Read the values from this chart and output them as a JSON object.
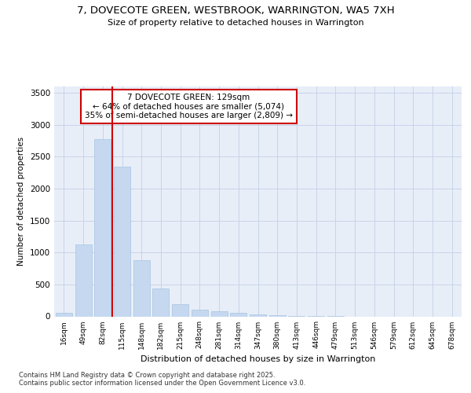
{
  "title1": "7, DOVECOTE GREEN, WESTBROOK, WARRINGTON, WA5 7XH",
  "title2": "Size of property relative to detached houses in Warrington",
  "xlabel": "Distribution of detached houses by size in Warrington",
  "ylabel": "Number of detached properties",
  "categories": [
    "16sqm",
    "49sqm",
    "82sqm",
    "115sqm",
    "148sqm",
    "182sqm",
    "215sqm",
    "248sqm",
    "281sqm",
    "314sqm",
    "347sqm",
    "380sqm",
    "413sqm",
    "446sqm",
    "479sqm",
    "513sqm",
    "546sqm",
    "579sqm",
    "612sqm",
    "645sqm",
    "678sqm"
  ],
  "values": [
    50,
    1130,
    2775,
    2340,
    880,
    440,
    195,
    105,
    80,
    55,
    30,
    18,
    8,
    3,
    1,
    0,
    0,
    0,
    0,
    0,
    0
  ],
  "bar_color": "#c5d8f0",
  "bar_edge_color": "#a8c4e0",
  "grid_color": "#c8d4e8",
  "bg_color": "#e8eef8",
  "vline_color": "#cc0000",
  "vline_pos": 2.5,
  "annotation_title": "7 DOVECOTE GREEN: 129sqm",
  "annotation_line1": "← 64% of detached houses are smaller (5,074)",
  "annotation_line2": "35% of semi-detached houses are larger (2,809) →",
  "annotation_box_color": "#cc0000",
  "footer1": "Contains HM Land Registry data © Crown copyright and database right 2025.",
  "footer2": "Contains public sector information licensed under the Open Government Licence v3.0.",
  "ylim": [
    0,
    3600
  ],
  "yticks": [
    0,
    500,
    1000,
    1500,
    2000,
    2500,
    3000,
    3500
  ]
}
